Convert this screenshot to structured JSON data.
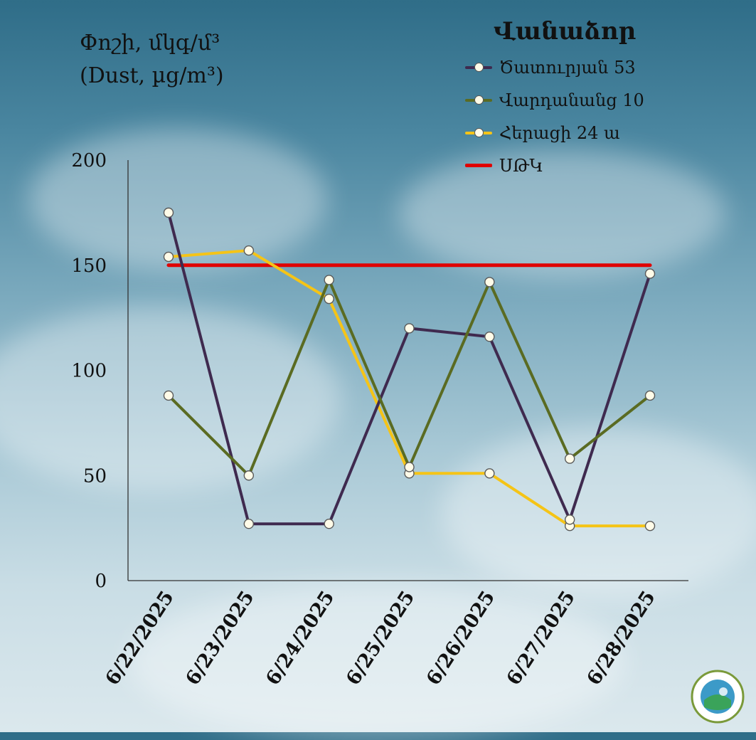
{
  "ytitle_line1": "Փոշի, մկգ/մ³",
  "ytitle_line2": "(Dust, µg/m³)",
  "legend": {
    "title": "Վանաձոր",
    "items": [
      "Ծատուրյան 53",
      "Վարդանանց 10",
      "Հերացի 24 ա",
      "ՍԹԿ"
    ]
  },
  "chart_data": {
    "type": "line",
    "categories": [
      "6/22/2025",
      "6/23/2025",
      "6/24/2025",
      "6/25/2025",
      "6/26/2025",
      "6/27/2025",
      "6/28/2025"
    ],
    "ylim": [
      0,
      200
    ],
    "yticks": [
      "0",
      "50",
      "100",
      "150",
      "200"
    ],
    "series": [
      {
        "name": "Ծատուրյան 53",
        "color": "#3f2a4f",
        "values": [
          175,
          27,
          27,
          120,
          116,
          29,
          146
        ]
      },
      {
        "name": "Վարդանանց 10",
        "color": "#5a6b22",
        "values": [
          88,
          50,
          143,
          54,
          142,
          58,
          88
        ]
      },
      {
        "name": "Հերացի 24 ա",
        "color": "#f5c417",
        "values": [
          154,
          157,
          134,
          51,
          51,
          26,
          26
        ]
      },
      {
        "name": "ՍԹԿ",
        "color": "#e00000",
        "values": [
          150,
          150,
          150,
          150,
          150,
          150,
          150
        ]
      }
    ]
  }
}
